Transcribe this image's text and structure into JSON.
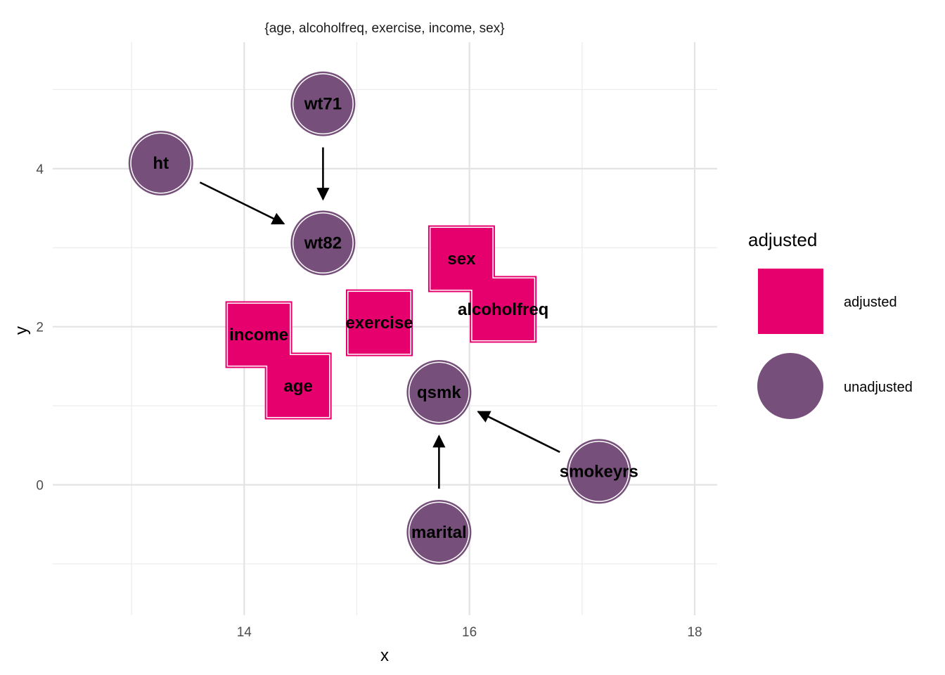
{
  "chart_data": {
    "type": "scatter",
    "title": "{age, alcoholfreq, exercise, income, sex}",
    "xlabel": "x",
    "ylabel": "y",
    "xlim": [
      12.3,
      18.2
    ],
    "ylim": [
      -1.65,
      5.6
    ],
    "x_ticks": [
      14,
      16,
      18
    ],
    "y_ticks": [
      0,
      2,
      4
    ],
    "x_minor_ticks": [
      13,
      15,
      17
    ],
    "y_minor_ticks": [
      -1,
      1,
      3,
      5
    ],
    "grid": true,
    "legend": {
      "title": "adjusted",
      "placement": "right",
      "entries": [
        {
          "label": "adjusted",
          "shape": "square",
          "color": "#E6006E"
        },
        {
          "label": "unadjusted",
          "shape": "circle",
          "color": "#76507A"
        }
      ]
    },
    "colors": {
      "adjusted": "#E6006E",
      "unadjusted": "#76507A",
      "edge": "#000000"
    },
    "nodes": [
      {
        "name": "wt71",
        "x": 14.7,
        "y": 4.82,
        "adjusted": "unadjusted"
      },
      {
        "name": "ht",
        "x": 13.26,
        "y": 4.07,
        "adjusted": "unadjusted"
      },
      {
        "name": "wt82",
        "x": 14.7,
        "y": 3.06,
        "adjusted": "unadjusted"
      },
      {
        "name": "sex",
        "x": 15.93,
        "y": 2.86,
        "adjusted": "adjusted"
      },
      {
        "name": "alcoholfreq",
        "x": 16.3,
        "y": 2.22,
        "adjusted": "adjusted"
      },
      {
        "name": "exercise",
        "x": 15.2,
        "y": 2.05,
        "adjusted": "adjusted"
      },
      {
        "name": "income",
        "x": 14.13,
        "y": 1.9,
        "adjusted": "adjusted"
      },
      {
        "name": "age",
        "x": 14.48,
        "y": 1.25,
        "adjusted": "adjusted"
      },
      {
        "name": "qsmk",
        "x": 15.73,
        "y": 1.17,
        "adjusted": "unadjusted"
      },
      {
        "name": "smokeyrs",
        "x": 17.15,
        "y": 0.17,
        "adjusted": "unadjusted"
      },
      {
        "name": "marital",
        "x": 15.73,
        "y": -0.6,
        "adjusted": "unadjusted"
      }
    ],
    "edges": [
      {
        "from": "wt71",
        "to": "wt82"
      },
      {
        "from": "ht",
        "to": "wt82"
      },
      {
        "from": "smokeyrs",
        "to": "qsmk"
      },
      {
        "from": "marital",
        "to": "qsmk"
      }
    ]
  }
}
